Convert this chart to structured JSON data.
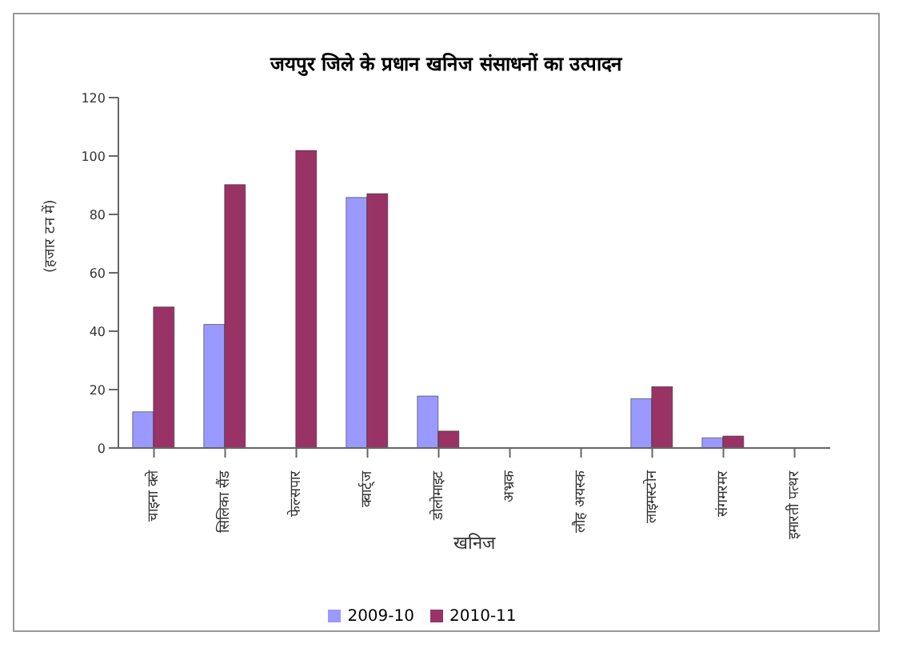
{
  "chart_data": {
    "type": "bar",
    "title": "जयपुर जिले के प्रधान खनिज संसाधनों का उत्पादन",
    "xlabel": "खनिज",
    "ylabel": "(हजार टन में)",
    "categories": [
      "चाइना क्ले",
      "सिलिका सैंड",
      "फेल्सपार",
      "क्वार्ट्ज",
      "डोलोमाइट",
      "अभ्रक",
      "लौह अयस्क",
      "लाइमस्टोन",
      "संगमरमर",
      "इमारती पत्थर"
    ],
    "series": [
      {
        "name": "2009-10",
        "color": "#9999ff",
        "values": [
          12.4,
          42.3,
          0,
          85.8,
          17.8,
          0,
          0,
          16.9,
          3.5,
          0
        ]
      },
      {
        "name": "2010-11",
        "color": "#993366",
        "values": [
          48.3,
          90.2,
          101.9,
          87.1,
          5.8,
          0,
          0,
          21,
          4.1,
          0
        ]
      }
    ],
    "ylim": [
      0,
      120
    ],
    "yticks": [
      0,
      20,
      40,
      60,
      80,
      100,
      120
    ],
    "grid": false,
    "legend": "bottom"
  }
}
